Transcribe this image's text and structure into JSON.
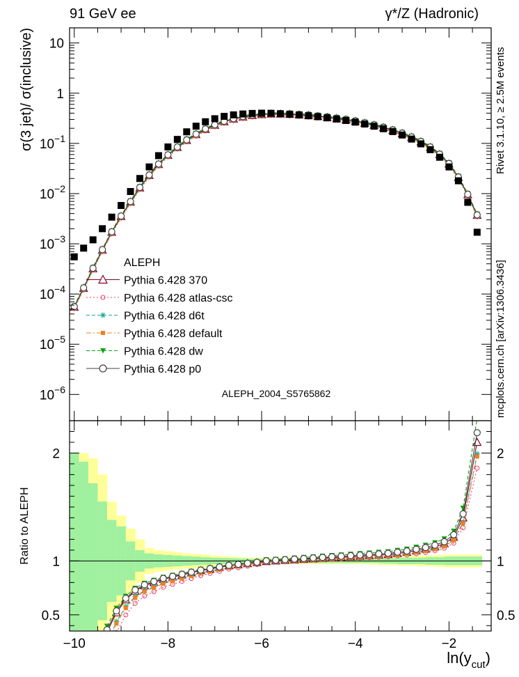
{
  "header": {
    "left_label": "91 GeV ee",
    "right_label": "γ*/Z (Hadronic)",
    "side_top": "Rivet 3.1.10, ≥ 2.5M events",
    "side_bottom": "mcplots.cern.ch [arXiv:1306.3436]",
    "watermark": "ALEPH_2004_S5765862"
  },
  "chart_data": [
    {
      "type": "scatter",
      "panel": "main",
      "ylabel": "σ(3 jet)/ σ(inclusive)",
      "xlabel": "ln(y_cut)",
      "yscale": "log",
      "xlim": [
        -10.1,
        -1.1
      ],
      "ylim": [
        3e-07,
        20
      ],
      "x_ticks": [
        -10,
        -8,
        -6,
        -4,
        -2
      ],
      "y_ticks": [
        {
          "v": 1e-06,
          "base": "10",
          "exp": "−6"
        },
        {
          "v": 1e-05,
          "base": "10",
          "exp": "−5"
        },
        {
          "v": 0.0001,
          "base": "10",
          "exp": "−4"
        },
        {
          "v": 0.001,
          "base": "10",
          "exp": "−3"
        },
        {
          "v": 0.01,
          "base": "10",
          "exp": "−2"
        },
        {
          "v": 0.1,
          "base": "10",
          "exp": "−1"
        },
        {
          "v": 1,
          "base": "1",
          "exp": ""
        },
        {
          "v": 10,
          "base": "10",
          "exp": ""
        }
      ],
      "legend_position": "center-left",
      "data_x": [
        -10,
        -9.8,
        -9.6,
        -9.4,
        -9.2,
        -9,
        -8.8,
        -8.6,
        -8.4,
        -8.2,
        -8,
        -7.8,
        -7.6,
        -7.4,
        -7.2,
        -7,
        -6.8,
        -6.6,
        -6.4,
        -6.2,
        -6,
        -5.8,
        -5.6,
        -5.4,
        -5.2,
        -5,
        -4.8,
        -4.6,
        -4.4,
        -4.2,
        -4,
        -3.8,
        -3.6,
        -3.4,
        -3.2,
        -3,
        -2.8,
        -2.6,
        -2.4,
        -2.2,
        -2,
        -1.8,
        -1.6,
        -1.4
      ],
      "data_y": [
        0.00055,
        0.00082,
        0.0012,
        0.002,
        0.0034,
        0.0058,
        0.011,
        0.02,
        0.034,
        0.057,
        0.085,
        0.12,
        0.17,
        0.22,
        0.27,
        0.31,
        0.345,
        0.37,
        0.385,
        0.395,
        0.4,
        0.398,
        0.39,
        0.38,
        0.368,
        0.355,
        0.34,
        0.323,
        0.305,
        0.286,
        0.265,
        0.243,
        0.22,
        0.196,
        0.172,
        0.147,
        0.122,
        0.098,
        0.075,
        0.053,
        0.034,
        0.018,
        0.0067,
        0.0017
      ],
      "mc_x": [
        -10,
        -9.8,
        -9.6,
        -9.4,
        -9.2,
        -9,
        -8.8,
        -8.6,
        -8.4,
        -8.2,
        -8,
        -7.8,
        -7.6,
        -7.4,
        -7.2,
        -7,
        -6.8,
        -6.6,
        -6.4,
        -6.2,
        -6,
        -5.8,
        -5.6,
        -5.4,
        -5.2,
        -5,
        -4.8,
        -4.6,
        -4.4,
        -4.2,
        -4,
        -3.8,
        -3.6,
        -3.4,
        -3.2,
        -3,
        -2.8,
        -2.6,
        -2.4,
        -2.2,
        -2,
        -1.8,
        -1.6,
        -1.4
      ],
      "mc_y": [
        5.5e-05,
        0.00013,
        0.00032,
        0.00075,
        0.0017,
        0.0035,
        0.0068,
        0.013,
        0.023,
        0.038,
        0.058,
        0.083,
        0.115,
        0.15,
        0.19,
        0.23,
        0.27,
        0.305,
        0.335,
        0.36,
        0.375,
        0.385,
        0.385,
        0.38,
        0.37,
        0.36,
        0.345,
        0.33,
        0.312,
        0.295,
        0.275,
        0.253,
        0.23,
        0.206,
        0.182,
        0.157,
        0.132,
        0.107,
        0.083,
        0.06,
        0.039,
        0.021,
        0.0095,
        0.0037
      ],
      "series": [
        {
          "name": "ALEPH",
          "marker": "square",
          "line": "none",
          "color": "#000000"
        },
        {
          "name": "Pythia 6.428 370",
          "marker": "triangle",
          "line": "solid",
          "color": "#800020",
          "offset": 1.0
        },
        {
          "name": "Pythia 6.428 atlas-csc",
          "marker": "circle-small",
          "line": "dotted",
          "color": "#e8446a",
          "offset": 0.93
        },
        {
          "name": "Pythia 6.428 d6t",
          "marker": "star",
          "line": "dashed",
          "color": "#20a89a",
          "offset": 0.97
        },
        {
          "name": "Pythia 6.428 default",
          "marker": "square-small",
          "line": "dashdot",
          "color": "#f08020",
          "offset": 0.95
        },
        {
          "name": "Pythia 6.428 dw",
          "marker": "triangle-down",
          "line": "dashed",
          "color": "#10a010",
          "offset": 1.06
        },
        {
          "name": "Pythia 6.428 p0",
          "marker": "circle",
          "line": "solid",
          "color": "#404040",
          "offset": 1.02
        }
      ]
    },
    {
      "type": "line",
      "panel": "ratio",
      "ylabel": "Ratio to ALEPH",
      "xlabel": "ln(y_cut)",
      "xlim": [
        -10.1,
        -1.1
      ],
      "ylim": [
        0.35,
        2.3
      ],
      "y_ticks": [
        0.5,
        1,
        2
      ],
      "band_x": [
        -10,
        -9.8,
        -9.6,
        -9.4,
        -9.2,
        -9,
        -8.8,
        -8.6,
        -8.4,
        -8.2,
        -8,
        -7.8,
        -7.6,
        -7.4,
        -7.2,
        -7,
        -6.8,
        -6.6,
        -6.4,
        -6.2,
        -6,
        -5.8,
        -5.6,
        -5.4,
        -5.2,
        -5,
        -4.8,
        -4.6,
        -4.4,
        -4.2,
        -4,
        -3.8,
        -3.6,
        -3.4,
        -3.2,
        -3,
        -2.8,
        -2.6,
        -2.4,
        -2.2,
        -2,
        -1.8,
        -1.6,
        -1.4
      ],
      "band_stat": [
        1.0,
        0.92,
        0.72,
        0.55,
        0.38,
        0.32,
        0.18,
        0.1,
        0.07,
        0.06,
        0.055,
        0.05,
        0.045,
        0.04,
        0.035,
        0.03,
        0.028,
        0.025,
        0.022,
        0.02,
        0.02,
        0.02,
        0.02,
        0.02,
        0.02,
        0.02,
        0.02,
        0.02,
        0.02,
        0.02,
        0.02,
        0.02,
        0.02,
        0.025,
        0.025,
        0.03,
        0.03,
        0.03,
        0.035,
        0.035,
        0.04,
        0.04,
        0.04,
        0.04
      ],
      "band_total": [
        1.0,
        1.0,
        0.95,
        0.8,
        0.55,
        0.42,
        0.3,
        0.2,
        0.12,
        0.1,
        0.09,
        0.08,
        0.07,
        0.065,
        0.06,
        0.05,
        0.045,
        0.04,
        0.035,
        0.03,
        0.03,
        0.03,
        0.03,
        0.03,
        0.03,
        0.03,
        0.03,
        0.03,
        0.03,
        0.03,
        0.03,
        0.03,
        0.035,
        0.04,
        0.04,
        0.045,
        0.045,
        0.05,
        0.05,
        0.055,
        0.06,
        0.06,
        0.06,
        0.06
      ],
      "ratio_x": [
        -9.3,
        -9.1,
        -8.9,
        -8.7,
        -8.5,
        -8.3,
        -8.1,
        -7.9,
        -7.7,
        -7.5,
        -7.3,
        -7.1,
        -6.9,
        -6.7,
        -6.5,
        -6.3,
        -6.1,
        -5.9,
        -5.7,
        -5.5,
        -5.3,
        -5.1,
        -4.9,
        -4.7,
        -4.5,
        -4.3,
        -4.1,
        -3.9,
        -3.7,
        -3.5,
        -3.3,
        -3.1,
        -2.9,
        -2.7,
        -2.5,
        -2.3,
        -2.1,
        -1.9,
        -1.7,
        -1.4
      ],
      "ratio_ref": [
        0.34,
        0.52,
        0.64,
        0.72,
        0.77,
        0.8,
        0.83,
        0.85,
        0.87,
        0.89,
        0.91,
        0.925,
        0.94,
        0.955,
        0.965,
        0.975,
        0.985,
        0.995,
        1.0,
        1.005,
        1.01,
        1.015,
        1.02,
        1.025,
        1.03,
        1.035,
        1.04,
        1.045,
        1.05,
        1.055,
        1.06,
        1.07,
        1.08,
        1.095,
        1.11,
        1.13,
        1.16,
        1.22,
        1.4,
        2.1
      ]
    }
  ]
}
